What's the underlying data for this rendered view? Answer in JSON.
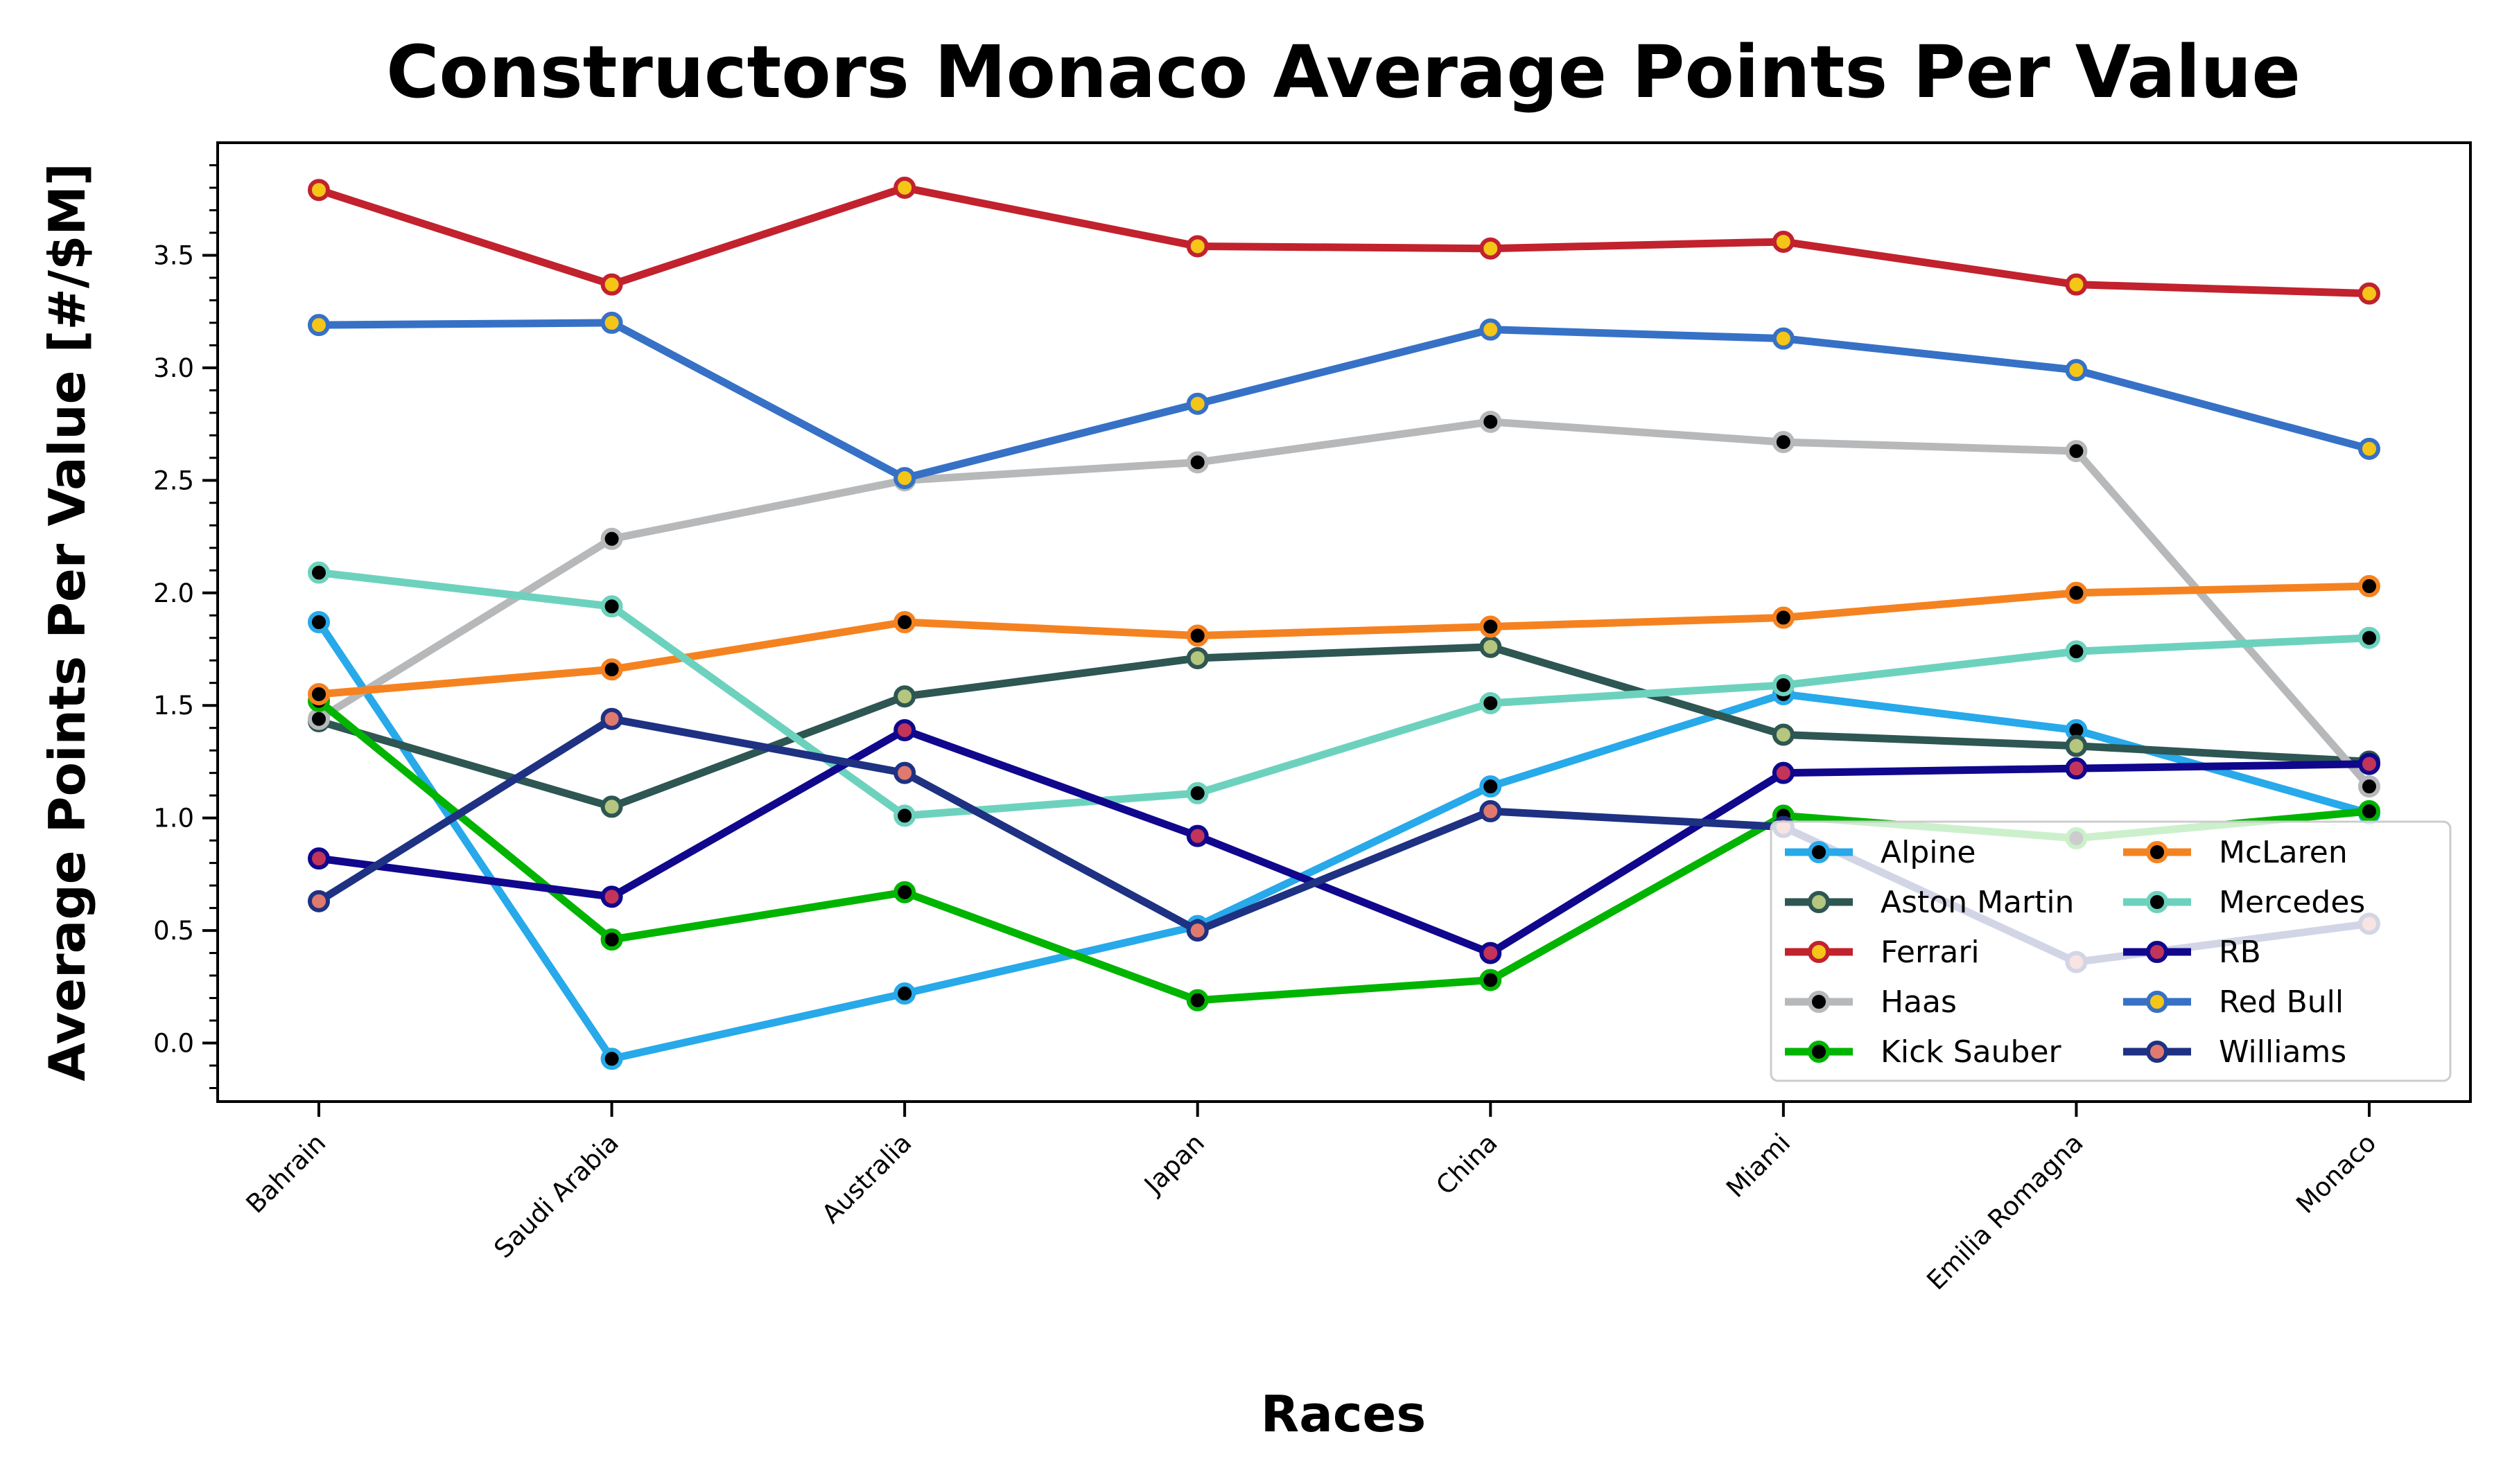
{
  "chart_data": {
    "type": "line",
    "title": "Constructors Monaco Average Points Per Value",
    "xlabel": "Races",
    "ylabel": "Average Points Per Value [#/$M]",
    "categories": [
      "Bahrain",
      "Saudi Arabia",
      "Australia",
      "Japan",
      "China",
      "Miami",
      "Emilia Romagna",
      "Monaco"
    ],
    "ylim": [
      -0.26,
      4.0
    ],
    "yticks": [
      "0.0",
      "0.5",
      "1.0",
      "1.5",
      "2.0",
      "2.5",
      "3.0",
      "3.5"
    ],
    "grid": false,
    "legend_position": "lower-right",
    "series": [
      {
        "name": "Alpine",
        "color": "#27a9ea",
        "marker_fill": "#000000",
        "values": [
          1.87,
          -0.07,
          0.22,
          0.52,
          1.14,
          1.55,
          1.39,
          1.02
        ]
      },
      {
        "name": "Aston Martin",
        "color": "#2e5652",
        "marker_fill": "#b5c67e",
        "values": [
          1.43,
          1.05,
          1.54,
          1.71,
          1.76,
          1.37,
          1.32,
          1.25
        ]
      },
      {
        "name": "Ferrari",
        "color": "#c1222d",
        "marker_fill": "#f5c518",
        "values": [
          3.79,
          3.37,
          3.8,
          3.54,
          3.53,
          3.56,
          3.37,
          3.33
        ]
      },
      {
        "name": "Haas",
        "color": "#b6b8ba",
        "marker_fill": "#000000",
        "values": [
          1.44,
          2.24,
          2.5,
          2.58,
          2.76,
          2.67,
          2.63,
          1.14
        ]
      },
      {
        "name": "Kick Sauber",
        "color": "#00b400",
        "marker_fill": "#000000",
        "values": [
          1.52,
          0.46,
          0.67,
          0.19,
          0.28,
          1.01,
          0.91,
          1.03
        ]
      },
      {
        "name": "McLaren",
        "color": "#f58220",
        "marker_fill": "#000000",
        "values": [
          1.55,
          1.66,
          1.87,
          1.81,
          1.85,
          1.89,
          2.0,
          2.03
        ]
      },
      {
        "name": "Mercedes",
        "color": "#6dd2bd",
        "marker_fill": "#000000",
        "values": [
          2.09,
          1.94,
          1.01,
          1.11,
          1.51,
          1.59,
          1.74,
          1.8
        ]
      },
      {
        "name": "RB",
        "color": "#10078d",
        "marker_fill": "#c2345a",
        "values": [
          0.82,
          0.65,
          1.39,
          0.92,
          0.4,
          1.2,
          1.22,
          1.24
        ]
      },
      {
        "name": "Red Bull",
        "color": "#3671c6",
        "marker_fill": "#f5c518",
        "values": [
          3.19,
          3.2,
          2.51,
          2.84,
          3.17,
          3.13,
          2.99,
          2.64
        ]
      },
      {
        "name": "Williams",
        "color": "#1e3182",
        "marker_fill": "#e07a6f",
        "values": [
          0.63,
          1.44,
          1.2,
          0.5,
          1.03,
          0.96,
          0.36,
          0.53
        ]
      }
    ]
  }
}
